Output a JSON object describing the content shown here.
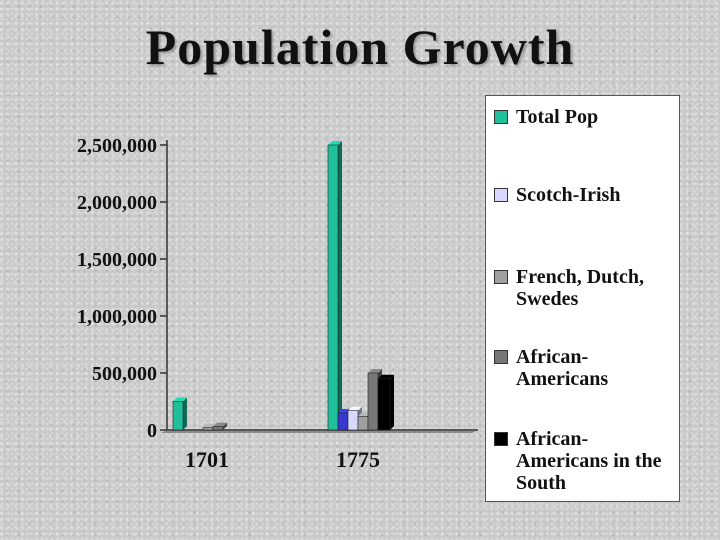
{
  "title": "Population Growth",
  "chart_data": {
    "type": "bar",
    "categories": [
      "1701",
      "1775"
    ],
    "ylim": [
      0,
      2500000
    ],
    "yticks": [
      0,
      500000,
      1000000,
      1500000,
      2000000,
      2500000
    ],
    "ytick_labels": [
      "0",
      "500,000",
      "1,000,000",
      "1,500,000",
      "2,000,000",
      "2,500,000"
    ],
    "series": [
      {
        "name": "Total Pop",
        "color": "#1fbf9a",
        "values": [
          250000,
          2500000
        ]
      },
      {
        "name": "Scotch-Irish",
        "color": "#d8d8ff",
        "values": [
          null,
          170000
        ]
      },
      {
        "name": "French, Dutch, Swedes",
        "color": "#a0a0a0",
        "values": [
          20000,
          120000
        ]
      },
      {
        "name": "African-Americans",
        "color": "#777777",
        "values": [
          30000,
          500000
        ]
      },
      {
        "name": "African-Americans in the South",
        "color": "#000000",
        "values": [
          null,
          450000
        ]
      }
    ],
    "extra_bar_1775": {
      "color": "#3838d0",
      "value": 150000
    },
    "legend_position": "right"
  },
  "legend": [
    {
      "label": "Total Pop",
      "color": "#1fbf9a"
    },
    {
      "label": "Scotch-Irish",
      "color": "#d8d8ff"
    },
    {
      "label": "French, Dutch, Swedes",
      "color": "#a0a0a0"
    },
    {
      "label": "African-Americans",
      "color": "#777777"
    },
    {
      "label": "African-Americans in the South",
      "color": "#000000"
    }
  ]
}
